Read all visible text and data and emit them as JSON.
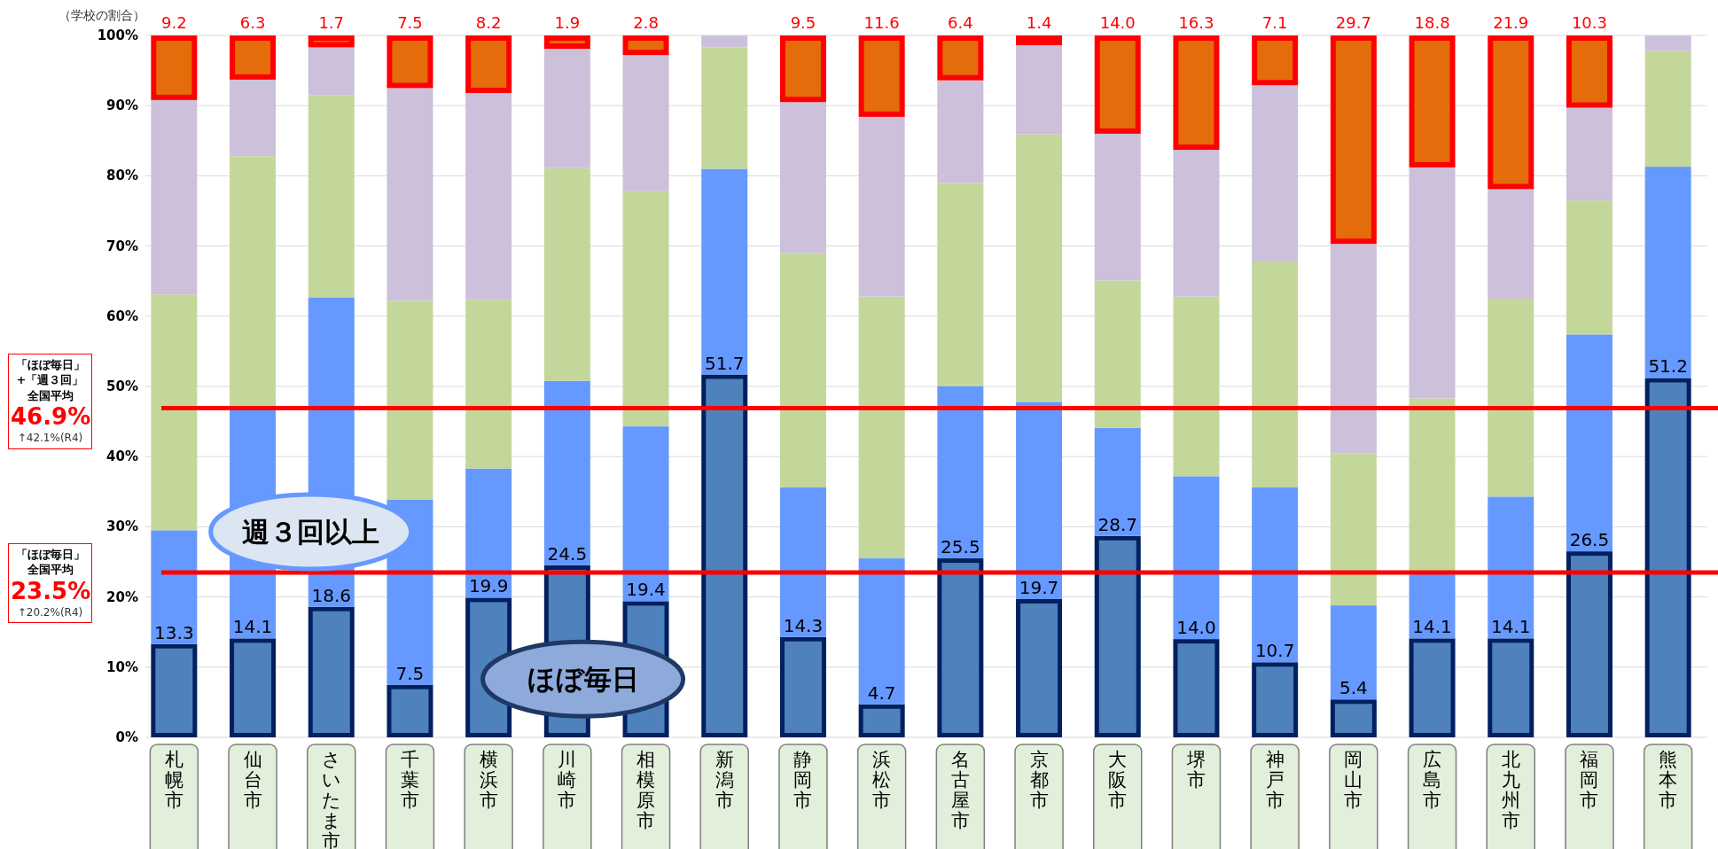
{
  "chart_data": {
    "type": "bar",
    "stacked": true,
    "ylabel": "（学校の割合）",
    "grid": "y",
    "annotations": [
      "「ほぼ毎日」+「週３回」全国平均",
      "↑42.1%(R4)",
      "「ほぼ毎日」全国平均",
      "↑20.2%(R4)"
    ],
    "categories": [
      "札幌市",
      "仙台市",
      "さいたま市",
      "千葉市",
      "横浜市",
      "川崎市",
      "相模原市",
      "新潟市",
      "静岡市",
      "浜松市",
      "名古屋市",
      "京都市",
      "大阪市",
      "堺市",
      "神戸市",
      "岡山市",
      "広島市",
      "北九州市",
      "福岡市",
      "熊本市"
    ],
    "ylim": [
      0,
      100
    ],
    "yticks": [
      {
        "value": 0,
        "label": "0%"
      },
      {
        "value": 10,
        "label": "10%"
      },
      {
        "value": 20,
        "label": "20%"
      },
      {
        "value": 30,
        "label": "30%"
      },
      {
        "value": 40,
        "label": "40%"
      },
      {
        "value": 50,
        "label": "50%"
      },
      {
        "value": 60,
        "label": "60%"
      },
      {
        "value": 70,
        "label": "70%"
      },
      {
        "value": 80,
        "label": "80%"
      },
      {
        "value": 90,
        "label": "90%"
      },
      {
        "value": 100,
        "label": "100%"
      }
    ],
    "series": [
      {
        "name": "ほぼ毎日",
        "color": "#4f81bd",
        "values": [
          13.3,
          14.1,
          18.6,
          7.5,
          19.9,
          24.5,
          19.4,
          51.7,
          14.3,
          4.7,
          25.5,
          19.7,
          28.7,
          14.0,
          10.7,
          5.4,
          14.1,
          14.1,
          26.5,
          51.2
        ],
        "value_labels": [
          "13.3",
          "14.1",
          "18.6",
          "7.5",
          "19.9",
          "24.5",
          "19.4",
          "51.7",
          "14.3",
          "4.7",
          "25.5",
          "19.7",
          "28.7",
          "14.0",
          "10.7",
          "5.4",
          "14.1",
          "14.1",
          "26.5",
          "51.2"
        ]
      },
      {
        "name": "週３回以上",
        "color": "#6699ff",
        "values": [
          16.2,
          32.6,
          44.1,
          26.4,
          18.4,
          26.3,
          24.9,
          29.3,
          21.3,
          20.8,
          24.5,
          28.1,
          15.4,
          23.2,
          24.9,
          13.4,
          9.3,
          20.2,
          30.9,
          30.1
        ]
      },
      {
        "color": "#c4d79b",
        "values": [
          33.6,
          36.1,
          28.8,
          28.3,
          24.1,
          30.3,
          33.5,
          17.3,
          33.4,
          37.3,
          29.0,
          38.1,
          21.0,
          25.6,
          32.2,
          21.7,
          24.9,
          28.2,
          19.1,
          16.5
        ]
      },
      {
        "color": "#ccc0da",
        "values": [
          27.7,
          10.9,
          6.8,
          30.3,
          29.4,
          17.0,
          19.4,
          1.7,
          21.5,
          25.6,
          14.6,
          12.7,
          20.9,
          20.9,
          25.1,
          29.8,
          32.9,
          15.6,
          13.2,
          2.2
        ]
      },
      {
        "color": "#e46c0a",
        "values": [
          9.2,
          6.3,
          1.7,
          7.5,
          8.2,
          1.9,
          2.8,
          null,
          9.5,
          11.6,
          6.4,
          1.4,
          14.0,
          16.3,
          7.1,
          29.7,
          18.8,
          21.9,
          10.3,
          null
        ],
        "value_labels": [
          "9.2",
          "6.3",
          "1.7",
          "7.5",
          "8.2",
          "1.9",
          "2.8",
          null,
          "9.5",
          "11.6",
          "6.4",
          "1.4",
          "14.0",
          "16.3",
          "7.1",
          "29.7",
          "18.8",
          "21.9",
          "10.3",
          null
        ]
      }
    ],
    "ref_lines": [
      {
        "axis": "y",
        "value": 46.9,
        "label": "46.9%",
        "color": "#ff0000"
      },
      {
        "axis": "y",
        "value": 23.5,
        "label": "23.5%",
        "color": "#ff0000"
      }
    ]
  }
}
